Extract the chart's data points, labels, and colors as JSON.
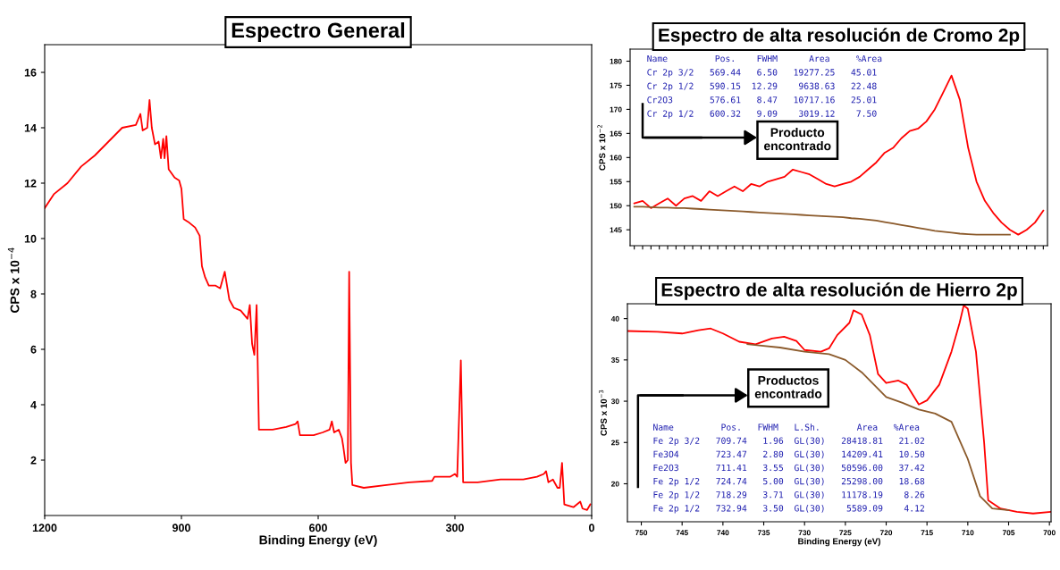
{
  "chart_data": [
    {
      "type": "line",
      "title": "Espectro General",
      "xlabel": "Binding Energy (eV)",
      "ylabel": "CPS x 10$^{−4}$",
      "xlim": [
        1200,
        0
      ],
      "xticks": [
        1200,
        900,
        600,
        300,
        0
      ],
      "ylim": [
        0,
        17
      ],
      "yticks": [
        2,
        4,
        6,
        8,
        10,
        12,
        14,
        16
      ],
      "series": [
        {
          "color": "#ff0000",
          "x": [
            1200,
            1180,
            1150,
            1120,
            1090,
            1060,
            1030,
            1000,
            990,
            985,
            975,
            970,
            965,
            958,
            950,
            945,
            940,
            937,
            933,
            928,
            915,
            905,
            900,
            895,
            885,
            870,
            860,
            855,
            848,
            840,
            825,
            815,
            805,
            795,
            785,
            770,
            755,
            750,
            745,
            740,
            735,
            730,
            700,
            670,
            650,
            645,
            640,
            610,
            590,
            575,
            570,
            565,
            555,
            548,
            545,
            540,
            535,
            532,
            528,
            525,
            500,
            450,
            400,
            350,
            345,
            310,
            300,
            295,
            287,
            282,
            250,
            200,
            150,
            120,
            105,
            100,
            95,
            85,
            75,
            70,
            65,
            60,
            40,
            25,
            20,
            10,
            3
          ],
          "values": [
            11.1,
            11.6,
            12.0,
            12.6,
            13.0,
            13.5,
            14.0,
            14.1,
            14.5,
            13.9,
            14.0,
            15.0,
            14.0,
            13.4,
            13.5,
            12.9,
            13.6,
            12.9,
            13.7,
            12.5,
            12.2,
            12.1,
            11.8,
            10.7,
            10.6,
            10.4,
            10.1,
            9.0,
            8.6,
            8.3,
            8.3,
            8.2,
            8.8,
            7.8,
            7.5,
            7.4,
            7.1,
            7.6,
            6.2,
            5.8,
            7.6,
            3.1,
            3.1,
            3.2,
            3.3,
            3.4,
            2.9,
            2.9,
            3.0,
            3.1,
            3.4,
            3.0,
            3.1,
            2.8,
            2.5,
            1.9,
            2.0,
            8.8,
            1.9,
            1.1,
            1.0,
            1.1,
            1.2,
            1.25,
            1.4,
            1.4,
            1.5,
            1.4,
            5.6,
            1.2,
            1.2,
            1.3,
            1.3,
            1.4,
            1.5,
            1.6,
            1.2,
            1.3,
            1.0,
            1.0,
            1.9,
            0.4,
            0.3,
            0.5,
            0.25,
            0.2,
            0.4
          ]
        }
      ]
    },
    {
      "type": "line",
      "title": "Espectro de alta resolución de Cromo 2p",
      "ylabel": "CPS x 10$^{−2}$",
      "tick_labels": "y",
      "ylim": [
        141.7,
        182.5
      ],
      "yticks": [
        145,
        150,
        155,
        160,
        165,
        170,
        175,
        180
      ],
      "categories": [
        null,
        null,
        null,
        null,
        null,
        null,
        null,
        null,
        null,
        null,
        null,
        null,
        null,
        null,
        null,
        null,
        null,
        null,
        null,
        null,
        null,
        null,
        null,
        null,
        null,
        null,
        null,
        null,
        null,
        null,
        null,
        null,
        null,
        null,
        null,
        null,
        null,
        null,
        null,
        null,
        null,
        null,
        null,
        null,
        null,
        null,
        null,
        null,
        null,
        null
      ],
      "series": [
        {
          "color": "#ff0000",
          "values": [
            150.5,
            151,
            149.5,
            150.5,
            151.5,
            150,
            151.5,
            152,
            151,
            153,
            152,
            153,
            154,
            153,
            154.5,
            154,
            155,
            155.5,
            156,
            157.5,
            157,
            156.5,
            155.5,
            154.5,
            154,
            154.5,
            155,
            156,
            157.5,
            159,
            161,
            162,
            164,
            165.5,
            166,
            167.5,
            170,
            173.5,
            177,
            172,
            162,
            155,
            151,
            148.5,
            146.5,
            145,
            144,
            145,
            146.5,
            149
          ]
        },
        {
          "color": "#8b5a2b",
          "values": [
            149.8,
            149.8,
            149.7,
            149.6,
            149.6,
            149.5,
            149.5,
            149.4,
            149.3,
            149.2,
            149.1,
            149.0,
            148.9,
            148.8,
            148.7,
            148.6,
            148.5,
            148.4,
            148.3,
            148.2,
            148.1,
            148.0,
            147.9,
            147.8,
            147.7,
            147.6,
            147.4,
            147.3,
            147.1,
            146.9,
            146.6,
            146.3,
            146.0,
            145.7,
            145.4,
            145.1,
            144.8,
            144.6,
            144.4,
            144.2,
            144.1,
            144.0,
            144.0,
            144.0,
            144.0,
            144.0,
            null,
            null,
            null,
            null
          ]
        }
      ],
      "annotations": [
        "Producto\nencontrado",
        "Name         Pos.    FWHM      Area     %Area",
        "Cr 2p 3/2   569.44   6.50   19277.25   45.01",
        "Cr 2p 1/2   590.15  12.29    9638.63   22.48",
        "Cr2O3       576.61   8.47   10717.16   25.01",
        "Cr 2p 1/2   600.32   9.09    3019.12    7.50"
      ]
    },
    {
      "type": "line",
      "title": "Espectro de alta resolución de Hierro 2p",
      "xlabel": "Binding Energy (eV)",
      "ylabel": "CPS x 10$^{−3}$",
      "xlim": [
        751.7,
        699.8
      ],
      "xticks": [
        750,
        745,
        740,
        735,
        730,
        725,
        720,
        715,
        710,
        705,
        700
      ],
      "ylim": [
        15.4,
        41.8
      ],
      "yticks": [
        20,
        25,
        30,
        35,
        40
      ],
      "series": [
        {
          "color": "#ff0000",
          "x": [
            751.7,
            748,
            745,
            743,
            741.5,
            740,
            738,
            736,
            734,
            732.5,
            731,
            730,
            728,
            727,
            726,
            724.5,
            724,
            723,
            722,
            721,
            720,
            718.5,
            717.5,
            716,
            715,
            713.5,
            712,
            711,
            710.5,
            710,
            709,
            708,
            707.5,
            706,
            704,
            702,
            699.8
          ],
          "values": [
            38.5,
            38.4,
            38.2,
            38.6,
            38.8,
            38.2,
            37.2,
            36.9,
            37.6,
            37.8,
            37.3,
            36.2,
            36.0,
            36.4,
            38.0,
            39.5,
            41.0,
            40.5,
            38.0,
            33.3,
            32.2,
            32.5,
            32.0,
            29.6,
            30.1,
            32.0,
            36.0,
            39.5,
            41.6,
            41.2,
            36.0,
            25.0,
            18.0,
            17.0,
            16.6,
            16.4,
            16.6
          ]
        },
        {
          "color": "#8b5a2b",
          "x": [
            737,
            733,
            730,
            727,
            725,
            723,
            721,
            720,
            718,
            716,
            714,
            712,
            710,
            708.5,
            707,
            705
          ],
          "values": [
            36.9,
            36.5,
            36.0,
            35.7,
            35.0,
            33.5,
            31.5,
            30.5,
            29.8,
            29.0,
            28.5,
            27.5,
            23.0,
            18.5,
            17.0,
            16.8
          ]
        }
      ],
      "annotations": [
        "Productos\nencontrado",
        "Name         Pos.   FWHM   L.Sh.       Area   %Area",
        "Fe 2p 3/2   709.74   1.96  GL(30)   28418.81   21.02",
        "Fe3O4       723.47   2.80  GL(30)   14209.41   10.50",
        "Fe2O3       711.41   3.55  GL(30)   50596.00   37.42",
        "Fe 2p 1/2   724.74   5.00  GL(30)   25298.00   18.68",
        "Fe 2p 1/2   718.29   3.71  GL(30)   11178.19    8.26",
        "Fe 2p 1/2   732.94   3.50  GL(30)    5589.09    4.12"
      ]
    }
  ]
}
